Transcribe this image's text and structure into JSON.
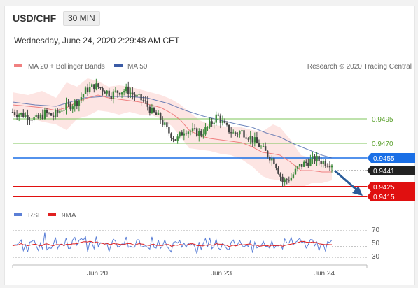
{
  "header": {
    "pair": "USD/CHF",
    "timeframe": "30 MIN"
  },
  "timestamp": "Wednesday, June 24, 2020 2:29:48 AM CET",
  "legend": {
    "bollinger": {
      "label": "MA 20 + Bollinger Bands",
      "color": "#f08080"
    },
    "ma50": {
      "label": "MA 50",
      "color": "#3b5ba5"
    },
    "rsi": {
      "label": "RSI",
      "color": "#5b7fd6"
    },
    "rsi_ma": {
      "label": "9MA",
      "color": "#e02020"
    }
  },
  "credit": "Research © 2020 Trading Central",
  "levels": [
    {
      "label": "0.9495",
      "kind": "resistance-text",
      "color": "#5aa02c"
    },
    {
      "label": "0.9470",
      "kind": "resistance-text",
      "color": "#5aa02c"
    },
    {
      "label": "0.9455",
      "kind": "pivot-badge",
      "color": "#1a6fe6"
    },
    {
      "label": "0.9441",
      "kind": "last-price-badge",
      "color": "#222222"
    },
    {
      "label": "0.9425",
      "kind": "support-badge",
      "color": "#e01010"
    },
    {
      "label": "0.9415",
      "kind": "support-badge",
      "color": "#e01010"
    }
  ],
  "x_axis_labels": [
    "Jun 20",
    "Jun 23",
    "Jun 24"
  ],
  "rsi_axis_labels": [
    "70",
    "50",
    "30"
  ],
  "chart_data": {
    "type": "candlestick",
    "price_levels": [
      0.9495,
      0.947,
      0.9455,
      0.9441,
      0.9425,
      0.9415
    ],
    "last_price": 0.9441,
    "rsi_levels": [
      70,
      50,
      30
    ],
    "close_path": [
      0.9488,
      0.9486,
      0.9484,
      0.9481,
      0.9487,
      0.9484,
      0.9491,
      0.9494,
      0.9498,
      0.9508,
      0.9512,
      0.9509,
      0.9504,
      0.9507,
      0.9508,
      0.9502,
      0.9498,
      0.9488,
      0.9482,
      0.947,
      0.9462,
      0.9472,
      0.947,
      0.9468,
      0.9475,
      0.9485,
      0.9474,
      0.9468,
      0.947,
      0.9465,
      0.9458,
      0.945,
      0.9443,
      0.9424,
      0.9428,
      0.9438,
      0.9442,
      0.9445,
      0.9442,
      0.9441
    ]
  }
}
